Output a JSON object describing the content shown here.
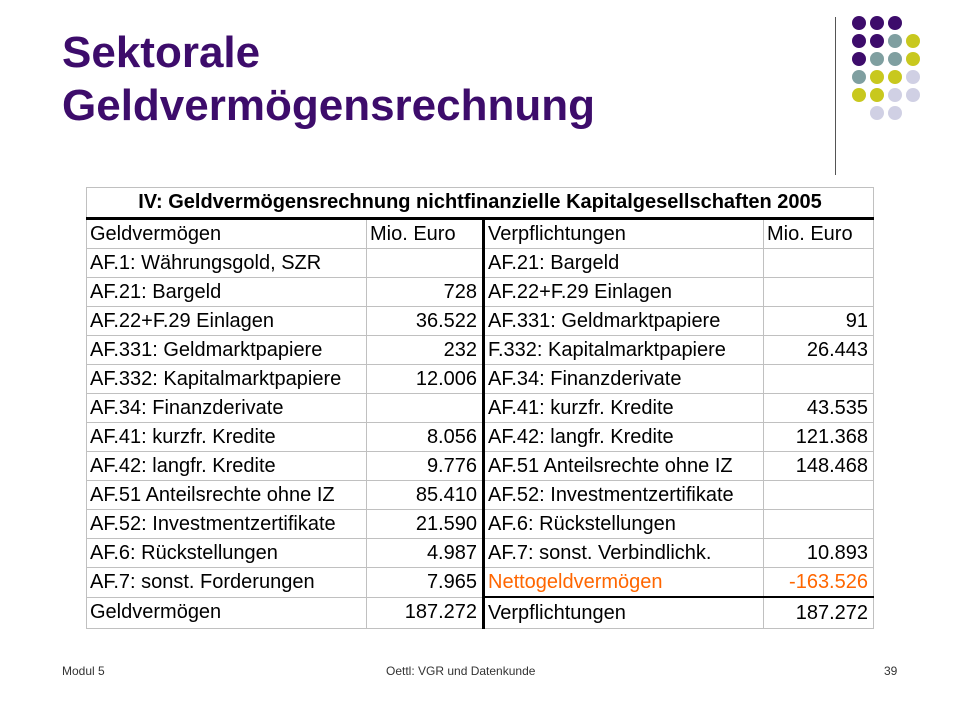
{
  "slide": {
    "title_line1": "Sektorale",
    "title_line2": "Geldvermögensrechnung"
  },
  "table": {
    "heading": "IV: Geldvermögensrechnung nichtfinanzielle Kapitalgesellschaften 2005",
    "header": {
      "assets": "Geldvermögen",
      "assets_unit": "Mio. Euro",
      "liabilities": "Verpflichtungen",
      "liabilities_unit": "Mio. Euro"
    },
    "rows": [
      {
        "asset": "AF.1: Währungsgold, SZR",
        "asset_value": "",
        "liability": "AF.21: Bargeld",
        "liability_value": ""
      },
      {
        "asset": "AF.21: Bargeld",
        "asset_value": "728",
        "liability": "AF.22+F.29 Einlagen",
        "liability_value": ""
      },
      {
        "asset": "AF.22+F.29 Einlagen",
        "asset_value": "36.522",
        "liability": "AF.331: Geldmarktpapiere",
        "liability_value": "91"
      },
      {
        "asset": "AF.331: Geldmarktpapiere",
        "asset_value": "232",
        "liability": "F.332: Kapitalmarktpapiere",
        "liability_value": "26.443"
      },
      {
        "asset": "AF.332: Kapitalmarktpapiere",
        "asset_value": "12.006",
        "liability": "AF.34: Finanzderivate",
        "liability_value": ""
      },
      {
        "asset": "AF.34: Finanzderivate",
        "asset_value": "",
        "liability": "AF.41: kurzfr. Kredite",
        "liability_value": "43.535"
      },
      {
        "asset": "AF.41: kurzfr. Kredite",
        "asset_value": "8.056",
        "liability": "AF.42: langfr. Kredite",
        "liability_value": "121.368"
      },
      {
        "asset": "AF.42: langfr. Kredite",
        "asset_value": "9.776",
        "liability": "AF.51 Anteilsrechte ohne IZ",
        "liability_value": "148.468"
      },
      {
        "asset": "AF.51 Anteilsrechte ohne IZ",
        "asset_value": "85.410",
        "liability": "AF.52: Investmentzertifikate",
        "liability_value": ""
      },
      {
        "asset": "AF.52: Investmentzertifikate",
        "asset_value": "21.590",
        "liability": "AF.6: Rückstellungen",
        "liability_value": ""
      },
      {
        "asset": "AF.6: Rückstellungen",
        "asset_value": "4.987",
        "liability": "AF.7: sonst. Verbindlichk.",
        "liability_value": "10.893"
      },
      {
        "asset": "AF.7: sonst. Forderungen",
        "asset_value": "7.965",
        "liability": "Nettogeldvermögen",
        "liability_value": "-163.526"
      }
    ],
    "totals": {
      "assets": "Geldvermögen",
      "assets_value": "187.272",
      "liabilities": "Verpflichtungen",
      "liabilities_value": "187.272"
    },
    "highlight_color": "#ff6600"
  },
  "footer": {
    "left": "Modul 5",
    "center": "Oettl: VGR und Datenkunde",
    "page": "39"
  },
  "colors": {
    "title": "#3d0c6b",
    "dot_purple": "#3d0c6b",
    "dot_teal": "#7f9fa0",
    "dot_yellow": "#c8c81e",
    "dot_lavender": "#d0d0e4"
  }
}
